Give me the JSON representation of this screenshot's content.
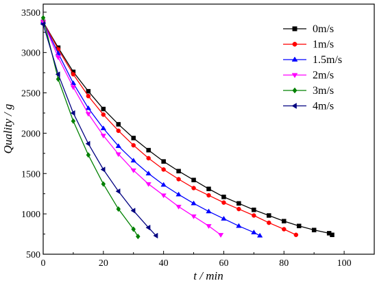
{
  "chart_data": {
    "type": "line",
    "title": "",
    "xlabel": "t / min",
    "ylabel": "Quality / g",
    "xlim": [
      0,
      110
    ],
    "ylim": [
      500,
      3600
    ],
    "x_ticks": [
      0,
      20,
      40,
      60,
      80,
      100
    ],
    "y_ticks": [
      500,
      1000,
      1500,
      2000,
      2500,
      3000,
      3500
    ],
    "grid": false,
    "legend_position": "top-right",
    "series": [
      {
        "name": "0m/s",
        "color": "#000000",
        "marker": "square",
        "x": [
          0,
          5,
          10,
          15,
          20,
          25,
          30,
          35,
          40,
          45,
          50,
          55,
          60,
          65,
          70,
          75,
          80,
          85,
          90,
          95,
          96
        ],
        "y": [
          3380,
          3060,
          2760,
          2520,
          2300,
          2110,
          1940,
          1790,
          1650,
          1530,
          1420,
          1310,
          1210,
          1130,
          1050,
          980,
          910,
          850,
          800,
          760,
          740
        ]
      },
      {
        "name": "1m/s",
        "color": "#ff0000",
        "marker": "circle",
        "x": [
          0,
          5,
          10,
          15,
          20,
          25,
          30,
          35,
          40,
          45,
          50,
          55,
          60,
          65,
          70,
          75,
          80,
          84
        ],
        "y": [
          3380,
          3040,
          2730,
          2460,
          2230,
          2030,
          1850,
          1690,
          1550,
          1430,
          1320,
          1230,
          1140,
          1060,
          980,
          890,
          810,
          740
        ]
      },
      {
        "name": "1.5m/s",
        "color": "#0000ff",
        "marker": "triangle-up",
        "x": [
          0,
          5,
          10,
          15,
          20,
          25,
          30,
          35,
          40,
          45,
          50,
          55,
          60,
          65,
          70,
          72
        ],
        "y": [
          3380,
          2990,
          2620,
          2310,
          2060,
          1840,
          1660,
          1500,
          1360,
          1240,
          1130,
          1030,
          940,
          850,
          770,
          730
        ]
      },
      {
        "name": "2m/s",
        "color": "#ff00ff",
        "marker": "triangle-down",
        "x": [
          0,
          5,
          10,
          15,
          20,
          25,
          30,
          35,
          40,
          45,
          50,
          55,
          59
        ],
        "y": [
          3380,
          2940,
          2570,
          2240,
          1970,
          1740,
          1540,
          1370,
          1230,
          1090,
          970,
          850,
          740
        ]
      },
      {
        "name": "3m/s",
        "color": "#008000",
        "marker": "diamond",
        "x": [
          0,
          5,
          10,
          15,
          20,
          25,
          30,
          31.5
        ],
        "y": [
          3430,
          2670,
          2150,
          1730,
          1370,
          1060,
          810,
          720
        ]
      },
      {
        "name": "4m/s",
        "color": "#000080",
        "marker": "triangle-left",
        "x": [
          0,
          5,
          10,
          15,
          20,
          25,
          30,
          35,
          37.5
        ],
        "y": [
          3350,
          2730,
          2250,
          1870,
          1550,
          1280,
          1040,
          830,
          730
        ]
      }
    ]
  }
}
